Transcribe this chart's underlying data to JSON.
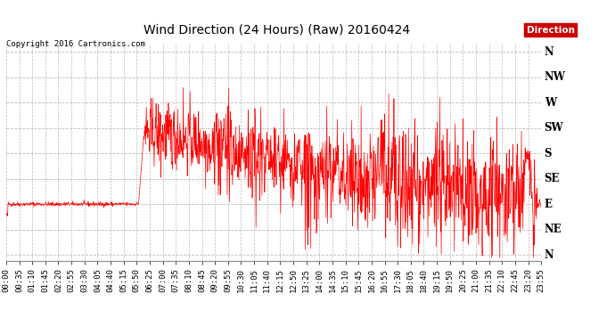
{
  "title": "Wind Direction (24 Hours) (Raw) 20160424",
  "copyright": "Copyright 2016 Cartronics.com",
  "legend_label": "Direction",
  "line_color": "#ff0000",
  "background_color": "#ffffff",
  "grid_color": "#bbbbbb",
  "y_labels": [
    "N",
    "NW",
    "W",
    "SW",
    "S",
    "SE",
    "E",
    "NE",
    "N"
  ],
  "y_ticks": [
    360,
    315,
    270,
    225,
    180,
    135,
    90,
    45,
    0
  ],
  "ylim": [
    -10,
    375
  ],
  "title_fontsize": 10,
  "axis_fontsize": 6.5,
  "ylabel_fontsize": 8.5,
  "copyright_fontsize": 6.5
}
